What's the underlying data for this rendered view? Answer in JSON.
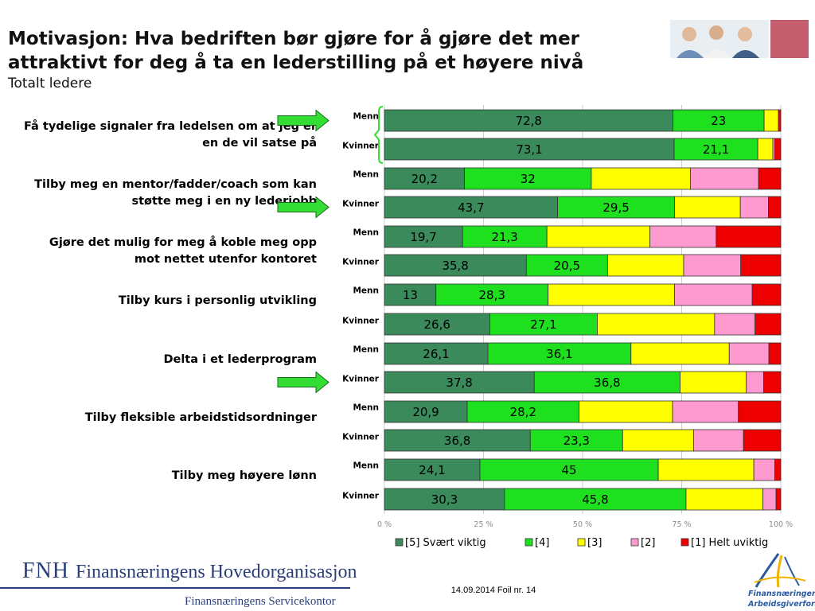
{
  "header": {
    "title": "Motivasjon: Hva bedriften bør gjøre for å gjøre det mer attraktivt for deg å ta en lederstilling på et høyere nivå",
    "subtitle": "Totalt ledere"
  },
  "colors": {
    "s5": "#3a8a5c",
    "s4": "#1ee01e",
    "s3": "#ffff00",
    "s2": "#ff9ad0",
    "s1": "#ee0000",
    "arrow": "#33dd33",
    "bracket": "#33dd33",
    "grid": "#cccccc"
  },
  "chart_data": {
    "type": "bar",
    "orientation": "horizontal",
    "stacked": "percent",
    "xlim": [
      0,
      100
    ],
    "x_ticks": [
      "0 %",
      "25 %",
      "50 %",
      "75 %",
      "100 %"
    ],
    "legend_position": "bottom",
    "series_names": [
      "[5] Svært viktig",
      "[4]",
      "[3]",
      "[2]",
      "[1] Helt uviktig"
    ],
    "groups": [
      {
        "label": "Få tydelige signaler fra ledelsen om at jeg er en de vil satse på",
        "bars": [
          {
            "label": "Menn",
            "values": [
              72.8,
              23,
              3.6,
              0,
              0.6
            ],
            "data_labels": [
              "72,8",
              "23",
              "",
              "",
              ""
            ]
          },
          {
            "label": "Kvinner",
            "values": [
              73.1,
              21.1,
              3.8,
              0.5,
              1.5
            ],
            "data_labels": [
              "73,1",
              "21,1",
              "",
              "",
              ""
            ]
          }
        ]
      },
      {
        "label": "Tilby meg en mentor/fadder/coach som kan støtte meg i en ny lederjobb",
        "bars": [
          {
            "label": "Menn",
            "values": [
              20.2,
              32,
              25,
              17.2,
              5.6
            ],
            "data_labels": [
              "20,2",
              "32",
              "",
              "",
              ""
            ]
          },
          {
            "label": "Kvinner",
            "values": [
              43.7,
              29.5,
              16.6,
              7.1,
              3.1
            ],
            "data_labels": [
              "43,7",
              "29,5",
              "",
              "",
              ""
            ]
          }
        ]
      },
      {
        "label": "Gjøre det mulig for meg å koble meg opp mot nettet utenfor kontoret",
        "bars": [
          {
            "label": "Menn",
            "values": [
              19.7,
              21.3,
              26,
              16.7,
              16.3
            ],
            "data_labels": [
              "19,7",
              "21,3",
              "",
              "",
              ""
            ]
          },
          {
            "label": "Kvinner",
            "values": [
              35.8,
              20.5,
              19.2,
              14.4,
              10.1
            ],
            "data_labels": [
              "35,8",
              "20,5",
              "",
              "",
              ""
            ]
          }
        ]
      },
      {
        "label": "Tilby kurs i personlig utvikling",
        "bars": [
          {
            "label": "Menn",
            "values": [
              13,
              28.3,
              31.9,
              19.6,
              7.2
            ],
            "data_labels": [
              "13",
              "28,3",
              "",
              "",
              ""
            ]
          },
          {
            "label": "Kvinner",
            "values": [
              26.6,
              27.1,
              29.6,
              10.2,
              6.5
            ],
            "data_labels": [
              "26,6",
              "27,1",
              "",
              "",
              ""
            ]
          }
        ]
      },
      {
        "label": "Delta i et lederprogram",
        "bars": [
          {
            "label": "Menn",
            "values": [
              26.1,
              36.1,
              24.8,
              10,
              3
            ],
            "data_labels": [
              "26,1",
              "36,1",
              "",
              "",
              ""
            ]
          },
          {
            "label": "Kvinner",
            "values": [
              37.8,
              36.8,
              16.7,
              4.4,
              4.3
            ],
            "data_labels": [
              "37,8",
              "36,8",
              "",
              "",
              ""
            ]
          }
        ]
      },
      {
        "label": "Tilby fleksible arbeidstidsordninger",
        "bars": [
          {
            "label": "Menn",
            "values": [
              20.9,
              28.2,
              23.6,
              16.6,
              10.7
            ],
            "data_labels": [
              "20,9",
              "28,2",
              "",
              "",
              ""
            ]
          },
          {
            "label": "Kvinner",
            "values": [
              36.8,
              23.3,
              17.9,
              12.6,
              9.4
            ],
            "data_labels": [
              "36,8",
              "23,3",
              "",
              "",
              ""
            ]
          }
        ]
      },
      {
        "label": "Tilby meg høyere lønn",
        "bars": [
          {
            "label": "Menn",
            "values": [
              24.1,
              45,
              24.1,
              5.3,
              1.5
            ],
            "data_labels": [
              "24,1",
              "45",
              "",
              "",
              ""
            ]
          },
          {
            "label": "Kvinner",
            "values": [
              30.3,
              45.8,
              19.4,
              3.3,
              1.2
            ],
            "data_labels": [
              "30,3",
              "45,8",
              "",
              "",
              ""
            ]
          }
        ]
      }
    ],
    "highlighted": [
      "Få tydelige signaler fra ledelsen om at jeg er en de vil satse på/Menn",
      "Tilby meg en mentor/fadder/coach som kan støtte meg i en ny lederjobb/Kvinner",
      "Delta i et lederprogram/Kvinner"
    ]
  },
  "footer": {
    "org_short": "FNH",
    "org_name": "Finansnæringens Hovedorganisasjon",
    "org_sub": "Finansnæringens Servicekontor",
    "date_slide": "14.09.2014 Foil nr. 14",
    "partner_logo_text": "Finansnæringens Arbeidsgiverforening"
  },
  "decor": {
    "photo_icon": "people-photo-icon",
    "partner_icon": "fa-swoosh-icon",
    "arrow_icon": "green-arrow-icon"
  }
}
